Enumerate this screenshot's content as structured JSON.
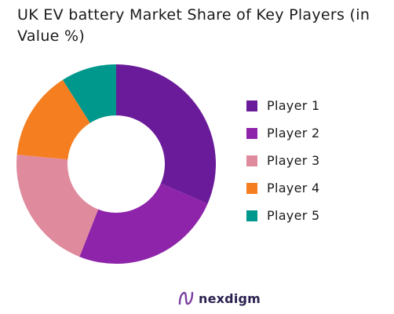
{
  "chart_data": {
    "type": "pie",
    "variant": "donut",
    "title": "UK EV battery Market Share of Key Players (in Value %)",
    "categories": [
      "Player 1",
      "Player 2",
      "Player 3",
      "Player 4",
      "Player 5"
    ],
    "values": [
      31.5,
      24.5,
      20.5,
      14.5,
      9.0
    ],
    "unit": "%",
    "colors": [
      "#6a1b9a",
      "#8e24aa",
      "#e08a9e",
      "#f57f20",
      "#00978c"
    ],
    "start": "12 o'clock",
    "direction": "clockwise",
    "legend": {
      "position": "right"
    },
    "data_labels": false
  },
  "legend_items": [
    {
      "label": "Player 1",
      "color": "#6a1b9a"
    },
    {
      "label": "Player 2",
      "color": "#8e24aa"
    },
    {
      "label": "Player 3",
      "color": "#e08a9e"
    },
    {
      "label": "Player 4",
      "color": "#f57f20"
    },
    {
      "label": "Player 5",
      "color": "#00978c"
    }
  ],
  "brand": {
    "name": "nexdigm",
    "logo_icon": "nexdigm-logo-icon",
    "color": "#2b2150"
  }
}
